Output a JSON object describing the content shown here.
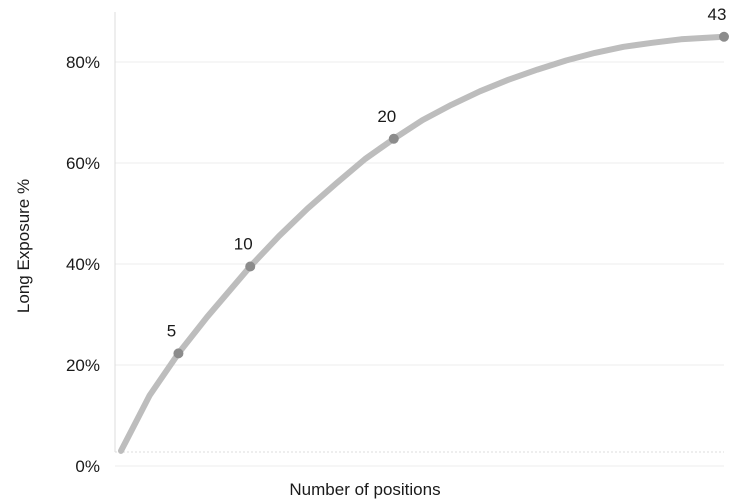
{
  "chart_data": {
    "type": "line",
    "title": "",
    "xlabel": "Number of positions",
    "ylabel": "Long Exposure %",
    "x_range": [
      1,
      43
    ],
    "ylim": [
      0,
      85
    ],
    "y_ticks": [
      0,
      20,
      40,
      60,
      80
    ],
    "y_tick_labels": [
      "0%",
      "20%",
      "40%",
      "60%",
      "80%"
    ],
    "grid": "horizontal",
    "series": [
      {
        "color": "#bdbdbd",
        "x": [
          1,
          3,
          5,
          7,
          10,
          12,
          14,
          16,
          18,
          20,
          22,
          24,
          26,
          28,
          30,
          32,
          34,
          36,
          38,
          40,
          43
        ],
        "values": [
          3,
          14,
          22.3,
          29.5,
          39.5,
          45.5,
          51,
          56,
          60.8,
          64.8,
          68.5,
          71.5,
          74.2,
          76.5,
          78.5,
          80.3,
          81.8,
          83,
          83.8,
          84.5,
          85
        ]
      }
    ],
    "highlighted_points": [
      {
        "x": 5,
        "y": 22.3,
        "label": "5"
      },
      {
        "x": 10,
        "y": 39.5,
        "label": "10"
      },
      {
        "x": 20,
        "y": 64.8,
        "label": "20"
      },
      {
        "x": 43,
        "y": 85,
        "label": "43"
      }
    ],
    "colors": {
      "line": "#bdbdbd",
      "marker": "#8c8c8c",
      "grid": "#ececec",
      "axis": "#d9d9d9"
    }
  }
}
